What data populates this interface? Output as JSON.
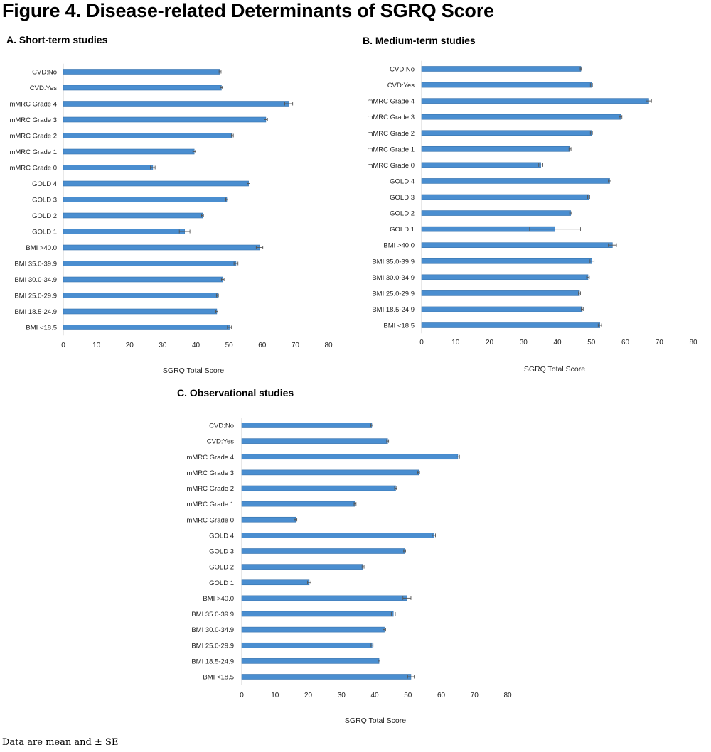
{
  "figure_title": "Figure 4. Disease-related Determinants of SGRQ Score",
  "footnote": "Data are mean and ± SE",
  "colors": {
    "bar": "#4a8ed0",
    "bar_edge": "#3a74ad",
    "error_bar": "#555555",
    "axis_text": "#222222"
  },
  "panels": [
    {
      "title": "A. Short-term studies"
    },
    {
      "title": "B. Medium-term studies"
    },
    {
      "title": "C. Observational studies"
    }
  ],
  "chart_data": [
    {
      "type": "bar",
      "orientation": "horizontal",
      "title": "A. Short-term studies",
      "xlabel": "SGRQ Total Score",
      "ylabel": "",
      "xlim": [
        0,
        80
      ],
      "x_ticks": [
        "0",
        "10",
        "20",
        "30",
        "40",
        "50",
        "60",
        "70",
        "80"
      ],
      "grid": false,
      "categories": [
        "CVD:No",
        "CVD:Yes",
        "mMRC Grade 4",
        "mMRC Grade 3",
        "mMRC Grade 2",
        "mMRC Grade 1",
        "mMRC Grade 0",
        "GOLD 4",
        "GOLD 3",
        "GOLD 2",
        "GOLD 1",
        "BMI >40.0",
        "BMI 35.0-39.9",
        "BMI 30.0-34.9",
        "BMI 25.0-29.9",
        "BMI 18.5-24.9",
        "BMI <18.5"
      ],
      "values": [
        47.3,
        47.7,
        68.0,
        61.1,
        51.0,
        39.5,
        27.0,
        55.9,
        49.3,
        42.0,
        36.6,
        59.2,
        52.1,
        48.1,
        46.5,
        46.3,
        50.1
      ],
      "errors": [
        0.3,
        0.3,
        1.2,
        0.5,
        0.3,
        0.4,
        0.7,
        0.4,
        0.3,
        0.3,
        1.6,
        1.0,
        0.6,
        0.4,
        0.3,
        0.3,
        0.6
      ]
    },
    {
      "type": "bar",
      "orientation": "horizontal",
      "title": "B. Medium-term studies",
      "xlabel": "SGRQ Total Score",
      "ylabel": "",
      "xlim": [
        0,
        80
      ],
      "x_ticks": [
        "0",
        "10",
        "20",
        "30",
        "40",
        "50",
        "60",
        "70",
        "80"
      ],
      "grid": false,
      "categories": [
        "CVD:No",
        "CVD:Yes",
        "mMRC Grade 4",
        "mMRC Grade 3",
        "mMRC Grade 2",
        "mMRC Grade 1",
        "mMRC Grade 0",
        "GOLD 4",
        "GOLD 3",
        "GOLD 2",
        "GOLD 1",
        "BMI >40.0",
        "BMI 35.0-39.9",
        "BMI 30.0-34.9",
        "BMI 25.0-29.9",
        "BMI 18.5-24.9",
        "BMI <18.5"
      ],
      "values": [
        46.9,
        50.0,
        66.9,
        58.6,
        50.0,
        43.7,
        35.1,
        55.4,
        49.2,
        43.9,
        39.3,
        56.2,
        50.2,
        49.0,
        46.5,
        47.3,
        52.5
      ],
      "errors": [
        0.2,
        0.3,
        0.8,
        0.4,
        0.3,
        0.3,
        0.6,
        0.4,
        0.3,
        0.3,
        7.5,
        1.2,
        0.6,
        0.4,
        0.3,
        0.3,
        0.5
      ]
    },
    {
      "type": "bar",
      "orientation": "horizontal",
      "title": "C. Observational studies",
      "xlabel": "SGRQ Total Score",
      "ylabel": "",
      "xlim": [
        0,
        80
      ],
      "x_ticks": [
        "0",
        "10",
        "20",
        "30",
        "40",
        "50",
        "60",
        "70",
        "80"
      ],
      "grid": false,
      "categories": [
        "CVD:No",
        "CVD:Yes",
        "mMRC Grade 4",
        "mMRC Grade 3",
        "mMRC Grade 2",
        "mMRC Grade 1",
        "mMRC Grade 0",
        "GOLD 4",
        "GOLD 3",
        "GOLD 2",
        "GOLD 1",
        "BMI >40.0",
        "BMI 35.0-39.9",
        "BMI 30.0-34.9",
        "BMI 25.0-29.9",
        "BMI 18.5-24.9",
        "BMI <18.5"
      ],
      "values": [
        39.1,
        43.9,
        65.0,
        53.2,
        46.3,
        34.1,
        16.2,
        57.8,
        49.0,
        36.5,
        20.3,
        49.7,
        45.6,
        42.9,
        39.2,
        41.3,
        50.9
      ],
      "errors": [
        0.3,
        0.3,
        0.5,
        0.3,
        0.3,
        0.3,
        0.4,
        0.5,
        0.3,
        0.3,
        0.5,
        1.2,
        0.6,
        0.4,
        0.3,
        0.3,
        1.0
      ]
    }
  ]
}
